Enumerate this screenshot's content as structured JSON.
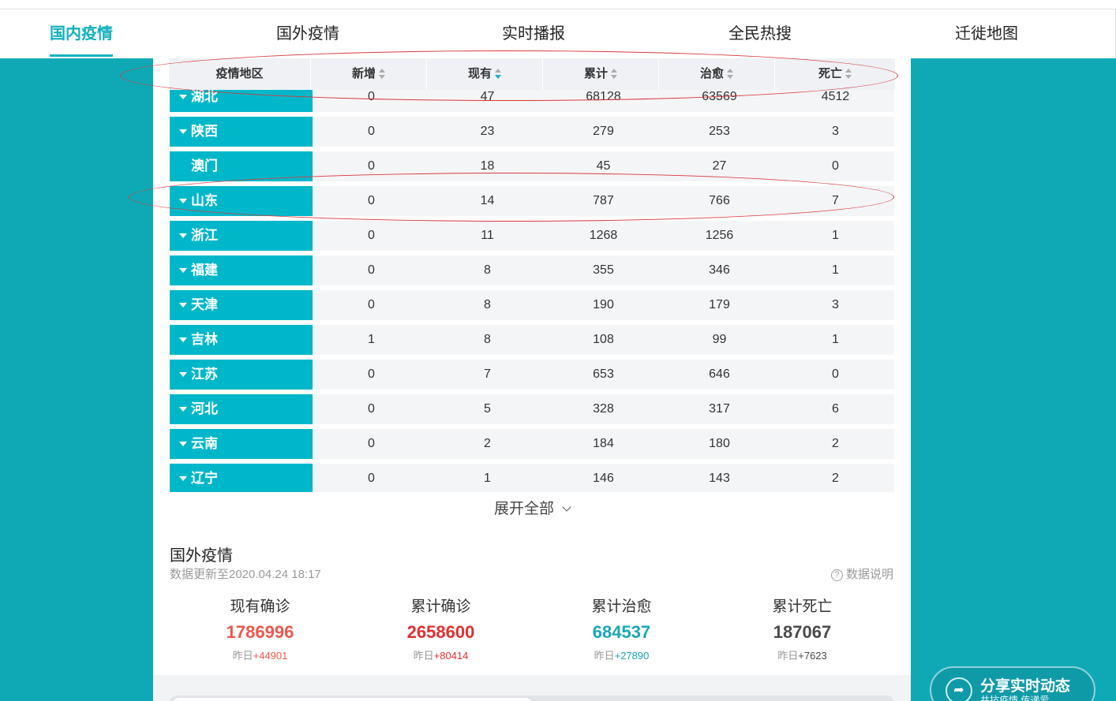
{
  "nav": {
    "tabs": [
      {
        "label": "国内疫情"
      },
      {
        "label": "国外疫情"
      },
      {
        "label": "实时播报"
      },
      {
        "label": "全民热搜"
      },
      {
        "label": "迁徙地图"
      }
    ]
  },
  "table": {
    "headers": {
      "region": "疫情地区",
      "new": "新增",
      "current": "现有",
      "total": "累计",
      "cured": "治愈",
      "death": "死亡"
    },
    "rows": [
      {
        "region": "湖北",
        "new": "0",
        "current": "47",
        "total": "68128",
        "cured": "63569",
        "death": "4512",
        "expandable": true
      },
      {
        "region": "陕西",
        "new": "0",
        "current": "23",
        "total": "279",
        "cured": "253",
        "death": "3",
        "expandable": true
      },
      {
        "region": "澳门",
        "new": "0",
        "current": "18",
        "total": "45",
        "cured": "27",
        "death": "0",
        "expandable": false
      },
      {
        "region": "山东",
        "new": "0",
        "current": "14",
        "total": "787",
        "cured": "766",
        "death": "7",
        "expandable": true
      },
      {
        "region": "浙江",
        "new": "0",
        "current": "11",
        "total": "1268",
        "cured": "1256",
        "death": "1",
        "expandable": true
      },
      {
        "region": "福建",
        "new": "0",
        "current": "8",
        "total": "355",
        "cured": "346",
        "death": "1",
        "expandable": true
      },
      {
        "region": "天津",
        "new": "0",
        "current": "8",
        "total": "190",
        "cured": "179",
        "death": "3",
        "expandable": true
      },
      {
        "region": "吉林",
        "new": "1",
        "current": "8",
        "total": "108",
        "cured": "99",
        "death": "1",
        "expandable": true
      },
      {
        "region": "江苏",
        "new": "0",
        "current": "7",
        "total": "653",
        "cured": "646",
        "death": "0",
        "expandable": true
      },
      {
        "region": "河北",
        "new": "0",
        "current": "5",
        "total": "328",
        "cured": "317",
        "death": "6",
        "expandable": true
      },
      {
        "region": "云南",
        "new": "0",
        "current": "2",
        "total": "184",
        "cured": "180",
        "death": "2",
        "expandable": true
      },
      {
        "region": "辽宁",
        "new": "0",
        "current": "1",
        "total": "146",
        "cured": "143",
        "death": "2",
        "expandable": true
      }
    ],
    "expand_label": "展开全部"
  },
  "foreign": {
    "title": "国外疫情",
    "update": "数据更新至2020.04.24 18:17",
    "help_label": "数据说明",
    "stats": [
      {
        "label": "现有确诊",
        "value": "1786996",
        "yest_prefix": "昨日",
        "yest_delta": "+44901",
        "color": "#f0564b"
      },
      {
        "label": "累计确诊",
        "value": "2658600",
        "yest_prefix": "昨日",
        "yest_delta": "+80414",
        "color": "#e02f2f"
      },
      {
        "label": "累计治愈",
        "value": "684537",
        "yest_prefix": "昨日",
        "yest_delta": "+27890",
        "color": "#1aa7b4"
      },
      {
        "label": "累计死亡",
        "value": "187067",
        "yest_prefix": "昨日",
        "yest_delta": "+7623",
        "color": "#4a4a4a"
      }
    ]
  },
  "share": {
    "title": "分享实时动态",
    "subtitle": "共抗疫情 传递爱"
  }
}
